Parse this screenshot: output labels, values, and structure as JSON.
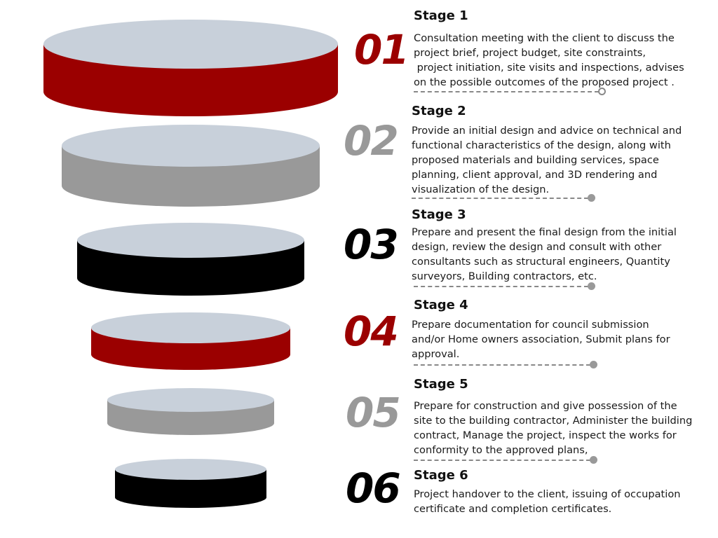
{
  "colors": {
    "red": "#9b0000",
    "gray": "#999999",
    "black": "#000000",
    "top_face": "#c8d0da"
  },
  "stages": [
    {
      "number": "01",
      "title": "Stage 1",
      "color": "#9b0000",
      "lines": [
        "Consultation meeting with the client to discuss the",
        "project brief, project budget, site constraints,",
        " project initiation, site visits and inspections, advises",
        "on the possible outcomes of the proposed project ."
      ]
    },
    {
      "number": "02",
      "title": "Stage 2",
      "color": "#999999",
      "lines": [
        "Provide an initial design and advice on technical and",
        "functional characteristics of the design, along with",
        "proposed materials and building services, space",
        "planning, client approval, and 3D rendering and",
        "visualization of the design."
      ]
    },
    {
      "number": "03",
      "title": "Stage 3",
      "color": "#000000",
      "lines": [
        "Prepare and present the final design from the initial",
        "design, review the design and consult with other",
        "consultants such as structural engineers, Quantity",
        "surveyors, Building contractors, etc."
      ]
    },
    {
      "number": "04",
      "title": "Stage 4",
      "color": "#9b0000",
      "lines": [
        "Prepare documentation for council submission",
        "and/or Home owners association, Submit plans for",
        "approval."
      ]
    },
    {
      "number": "05",
      "title": "Stage 5",
      "color": "#999999",
      "lines": [
        "Prepare for construction and give possession of the",
        "site to the building contractor, Administer the building",
        "contract, Manage the project, inspect the works for",
        "conformity to the approved plans,"
      ]
    },
    {
      "number": "06",
      "title": "Stage 6",
      "color": "#000000",
      "lines": [
        "Project handover to the client, issuing of occupation",
        "certificate and completion certificates."
      ]
    }
  ]
}
